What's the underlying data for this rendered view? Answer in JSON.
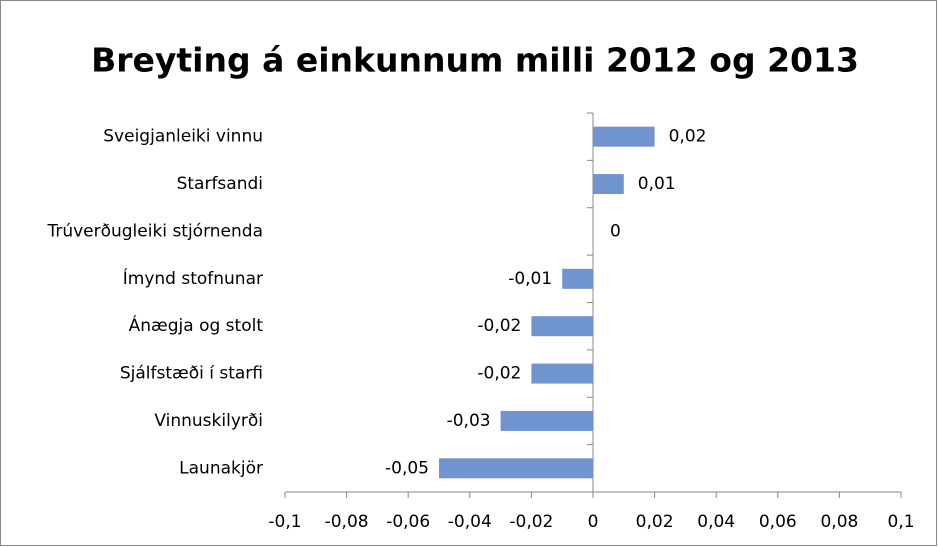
{
  "chart_data": {
    "type": "barh",
    "title": "Breyting á einkunnum milli 2012 og 2013",
    "categories": [
      "Sveigjanleiki vinnu",
      "Starfsandi",
      "Trúverðugleiki stjórnenda",
      "Ímynd stofnunar",
      "Ánægja og stolt",
      "Sjálfstæði í starfi",
      "Vinnuskilyrði",
      "Launakjör"
    ],
    "values": [
      0.02,
      0.01,
      0,
      -0.01,
      -0.02,
      -0.02,
      -0.03,
      -0.05
    ],
    "value_labels": [
      "0,02",
      "0,01",
      "0",
      "-0,01",
      "-0,02",
      "-0,02",
      "-0,03",
      "-0,05"
    ],
    "color": "#7094cd",
    "xlim": [
      -0.1,
      0.1
    ],
    "xticks": [
      {
        "value": -0.1,
        "label": "-0,1"
      },
      {
        "value": -0.08,
        "label": "-0,08"
      },
      {
        "value": -0.06,
        "label": "-0,06"
      },
      {
        "value": -0.04,
        "label": "-0,04"
      },
      {
        "value": -0.02,
        "label": "-0,02"
      },
      0,
      {
        "value": 0.02,
        "label": "0,02"
      },
      {
        "value": 0.04,
        "label": "0,04"
      },
      {
        "value": 0.06,
        "label": "0,06"
      },
      {
        "value": 0.08,
        "label": "0,08"
      },
      {
        "value": 0.1,
        "label": "0,1"
      }
    ]
  }
}
